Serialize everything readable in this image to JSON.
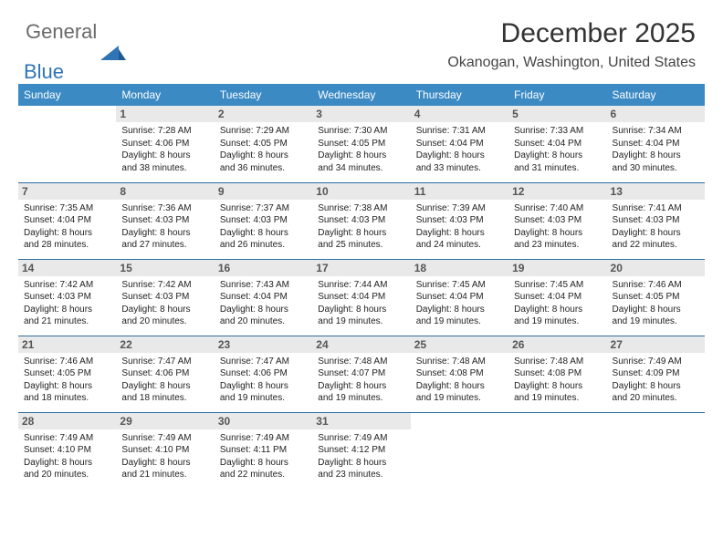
{
  "brand": {
    "part1": "General",
    "part2": "Blue"
  },
  "title": "December 2025",
  "location": "Okanogan, Washington, United States",
  "colors": {
    "header_bg": "#3b8ac4",
    "header_text": "#ffffff",
    "daynum_bg": "#e9e9e9",
    "daynum_text": "#555555",
    "row_border": "#2f6fa3",
    "body_text": "#222222",
    "title_text": "#333333",
    "brand_gray": "#6a6a6a",
    "brand_blue": "#2f75b5"
  },
  "typography": {
    "title_fontsize": 30,
    "subtitle_fontsize": 16,
    "header_fontsize": 12,
    "daynum_fontsize": 12,
    "body_fontsize": 10
  },
  "dayHeaders": [
    "Sunday",
    "Monday",
    "Tuesday",
    "Wednesday",
    "Thursday",
    "Friday",
    "Saturday"
  ],
  "weeks": [
    [
      {
        "n": ""
      },
      {
        "n": "1",
        "sr": "Sunrise: 7:28 AM",
        "ss": "Sunset: 4:06 PM",
        "d1": "Daylight: 8 hours",
        "d2": "and 38 minutes."
      },
      {
        "n": "2",
        "sr": "Sunrise: 7:29 AM",
        "ss": "Sunset: 4:05 PM",
        "d1": "Daylight: 8 hours",
        "d2": "and 36 minutes."
      },
      {
        "n": "3",
        "sr": "Sunrise: 7:30 AM",
        "ss": "Sunset: 4:05 PM",
        "d1": "Daylight: 8 hours",
        "d2": "and 34 minutes."
      },
      {
        "n": "4",
        "sr": "Sunrise: 7:31 AM",
        "ss": "Sunset: 4:04 PM",
        "d1": "Daylight: 8 hours",
        "d2": "and 33 minutes."
      },
      {
        "n": "5",
        "sr": "Sunrise: 7:33 AM",
        "ss": "Sunset: 4:04 PM",
        "d1": "Daylight: 8 hours",
        "d2": "and 31 minutes."
      },
      {
        "n": "6",
        "sr": "Sunrise: 7:34 AM",
        "ss": "Sunset: 4:04 PM",
        "d1": "Daylight: 8 hours",
        "d2": "and 30 minutes."
      }
    ],
    [
      {
        "n": "7",
        "sr": "Sunrise: 7:35 AM",
        "ss": "Sunset: 4:04 PM",
        "d1": "Daylight: 8 hours",
        "d2": "and 28 minutes."
      },
      {
        "n": "8",
        "sr": "Sunrise: 7:36 AM",
        "ss": "Sunset: 4:03 PM",
        "d1": "Daylight: 8 hours",
        "d2": "and 27 minutes."
      },
      {
        "n": "9",
        "sr": "Sunrise: 7:37 AM",
        "ss": "Sunset: 4:03 PM",
        "d1": "Daylight: 8 hours",
        "d2": "and 26 minutes."
      },
      {
        "n": "10",
        "sr": "Sunrise: 7:38 AM",
        "ss": "Sunset: 4:03 PM",
        "d1": "Daylight: 8 hours",
        "d2": "and 25 minutes."
      },
      {
        "n": "11",
        "sr": "Sunrise: 7:39 AM",
        "ss": "Sunset: 4:03 PM",
        "d1": "Daylight: 8 hours",
        "d2": "and 24 minutes."
      },
      {
        "n": "12",
        "sr": "Sunrise: 7:40 AM",
        "ss": "Sunset: 4:03 PM",
        "d1": "Daylight: 8 hours",
        "d2": "and 23 minutes."
      },
      {
        "n": "13",
        "sr": "Sunrise: 7:41 AM",
        "ss": "Sunset: 4:03 PM",
        "d1": "Daylight: 8 hours",
        "d2": "and 22 minutes."
      }
    ],
    [
      {
        "n": "14",
        "sr": "Sunrise: 7:42 AM",
        "ss": "Sunset: 4:03 PM",
        "d1": "Daylight: 8 hours",
        "d2": "and 21 minutes."
      },
      {
        "n": "15",
        "sr": "Sunrise: 7:42 AM",
        "ss": "Sunset: 4:03 PM",
        "d1": "Daylight: 8 hours",
        "d2": "and 20 minutes."
      },
      {
        "n": "16",
        "sr": "Sunrise: 7:43 AM",
        "ss": "Sunset: 4:04 PM",
        "d1": "Daylight: 8 hours",
        "d2": "and 20 minutes."
      },
      {
        "n": "17",
        "sr": "Sunrise: 7:44 AM",
        "ss": "Sunset: 4:04 PM",
        "d1": "Daylight: 8 hours",
        "d2": "and 19 minutes."
      },
      {
        "n": "18",
        "sr": "Sunrise: 7:45 AM",
        "ss": "Sunset: 4:04 PM",
        "d1": "Daylight: 8 hours",
        "d2": "and 19 minutes."
      },
      {
        "n": "19",
        "sr": "Sunrise: 7:45 AM",
        "ss": "Sunset: 4:04 PM",
        "d1": "Daylight: 8 hours",
        "d2": "and 19 minutes."
      },
      {
        "n": "20",
        "sr": "Sunrise: 7:46 AM",
        "ss": "Sunset: 4:05 PM",
        "d1": "Daylight: 8 hours",
        "d2": "and 19 minutes."
      }
    ],
    [
      {
        "n": "21",
        "sr": "Sunrise: 7:46 AM",
        "ss": "Sunset: 4:05 PM",
        "d1": "Daylight: 8 hours",
        "d2": "and 18 minutes."
      },
      {
        "n": "22",
        "sr": "Sunrise: 7:47 AM",
        "ss": "Sunset: 4:06 PM",
        "d1": "Daylight: 8 hours",
        "d2": "and 18 minutes."
      },
      {
        "n": "23",
        "sr": "Sunrise: 7:47 AM",
        "ss": "Sunset: 4:06 PM",
        "d1": "Daylight: 8 hours",
        "d2": "and 19 minutes."
      },
      {
        "n": "24",
        "sr": "Sunrise: 7:48 AM",
        "ss": "Sunset: 4:07 PM",
        "d1": "Daylight: 8 hours",
        "d2": "and 19 minutes."
      },
      {
        "n": "25",
        "sr": "Sunrise: 7:48 AM",
        "ss": "Sunset: 4:08 PM",
        "d1": "Daylight: 8 hours",
        "d2": "and 19 minutes."
      },
      {
        "n": "26",
        "sr": "Sunrise: 7:48 AM",
        "ss": "Sunset: 4:08 PM",
        "d1": "Daylight: 8 hours",
        "d2": "and 19 minutes."
      },
      {
        "n": "27",
        "sr": "Sunrise: 7:49 AM",
        "ss": "Sunset: 4:09 PM",
        "d1": "Daylight: 8 hours",
        "d2": "and 20 minutes."
      }
    ],
    [
      {
        "n": "28",
        "sr": "Sunrise: 7:49 AM",
        "ss": "Sunset: 4:10 PM",
        "d1": "Daylight: 8 hours",
        "d2": "and 20 minutes."
      },
      {
        "n": "29",
        "sr": "Sunrise: 7:49 AM",
        "ss": "Sunset: 4:10 PM",
        "d1": "Daylight: 8 hours",
        "d2": "and 21 minutes."
      },
      {
        "n": "30",
        "sr": "Sunrise: 7:49 AM",
        "ss": "Sunset: 4:11 PM",
        "d1": "Daylight: 8 hours",
        "d2": "and 22 minutes."
      },
      {
        "n": "31",
        "sr": "Sunrise: 7:49 AM",
        "ss": "Sunset: 4:12 PM",
        "d1": "Daylight: 8 hours",
        "d2": "and 23 minutes."
      },
      {
        "n": ""
      },
      {
        "n": ""
      },
      {
        "n": ""
      }
    ]
  ]
}
